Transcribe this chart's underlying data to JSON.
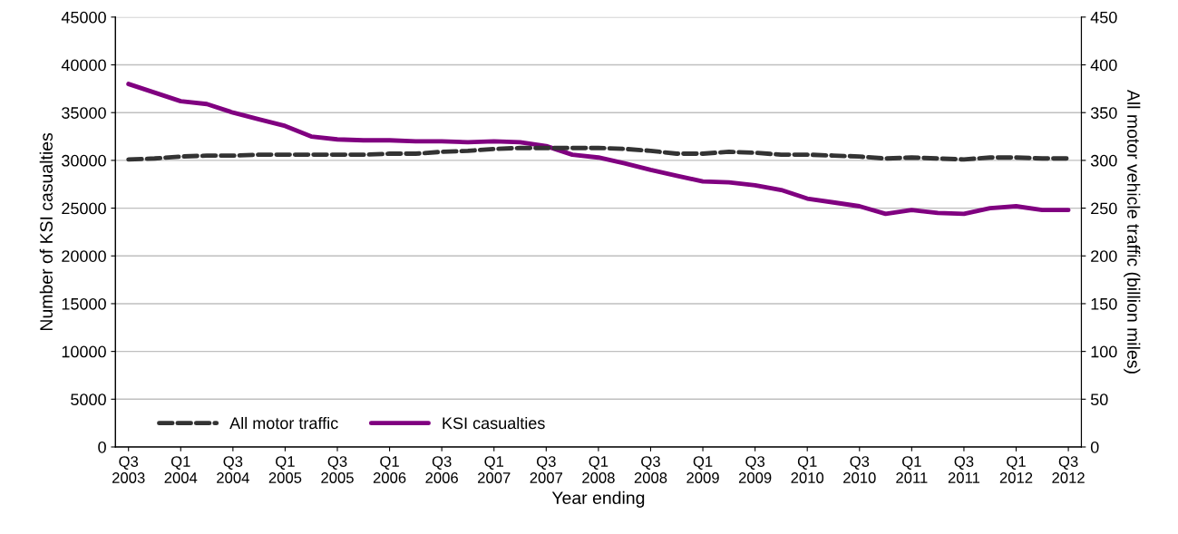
{
  "chart_data": {
    "type": "line",
    "xlabel": "Year ending",
    "ylabel": "Number of KSI casualties",
    "y2label": "All motor vehicle traffic (billion miles)",
    "categories": [
      "Q3\n2003",
      null,
      "Q1\n2004",
      null,
      "Q3\n2004",
      null,
      "Q1\n2005",
      null,
      "Q3\n2005",
      null,
      "Q1\n2006",
      null,
      "Q3\n2006",
      null,
      "Q1\n2007",
      null,
      "Q3\n2007",
      null,
      "Q1\n2008",
      null,
      "Q3\n2008",
      null,
      "Q1\n2009",
      null,
      "Q3\n2009",
      null,
      "Q1\n2010",
      null,
      "Q3\n2010",
      null,
      "Q1\n2011",
      null,
      "Q3\n2011",
      null,
      "Q1\n2012",
      null,
      "Q3\n2012"
    ],
    "series": [
      {
        "name": "All motor traffic",
        "color": "#333333",
        "axis": "y2",
        "line_style": "dashed",
        "values": [
          301,
          302,
          304,
          305,
          305,
          306,
          306,
          306,
          306,
          306,
          307,
          307,
          309,
          310,
          312,
          313,
          313,
          313,
          313,
          312,
          310,
          307,
          307,
          309,
          308,
          306,
          306,
          305,
          304,
          302,
          303,
          302,
          301,
          303,
          303,
          302,
          302
        ]
      },
      {
        "name": "KSI casualties",
        "color": "#800080",
        "line_style": "solid",
        "values": [
          38000,
          37100,
          36200,
          35900,
          35000,
          34300,
          33600,
          32500,
          32200,
          32100,
          32100,
          32000,
          32000,
          31900,
          32000,
          31900,
          31500,
          30600,
          30300,
          29700,
          29000,
          28400,
          27800,
          27700,
          27400,
          26900,
          26000,
          25600,
          25200,
          24400,
          24800,
          24500,
          24400,
          25000,
          25200,
          24800,
          24800
        ]
      }
    ],
    "ylim": [
      0,
      45000
    ],
    "yticks": [
      0,
      5000,
      10000,
      15000,
      20000,
      25000,
      30000,
      35000,
      40000,
      45000
    ],
    "y2lim": [
      0,
      450
    ],
    "y2ticks": [
      0,
      50,
      100,
      150,
      200,
      250,
      300,
      350,
      400,
      450
    ],
    "grid": "y",
    "legend": "bottom left"
  }
}
